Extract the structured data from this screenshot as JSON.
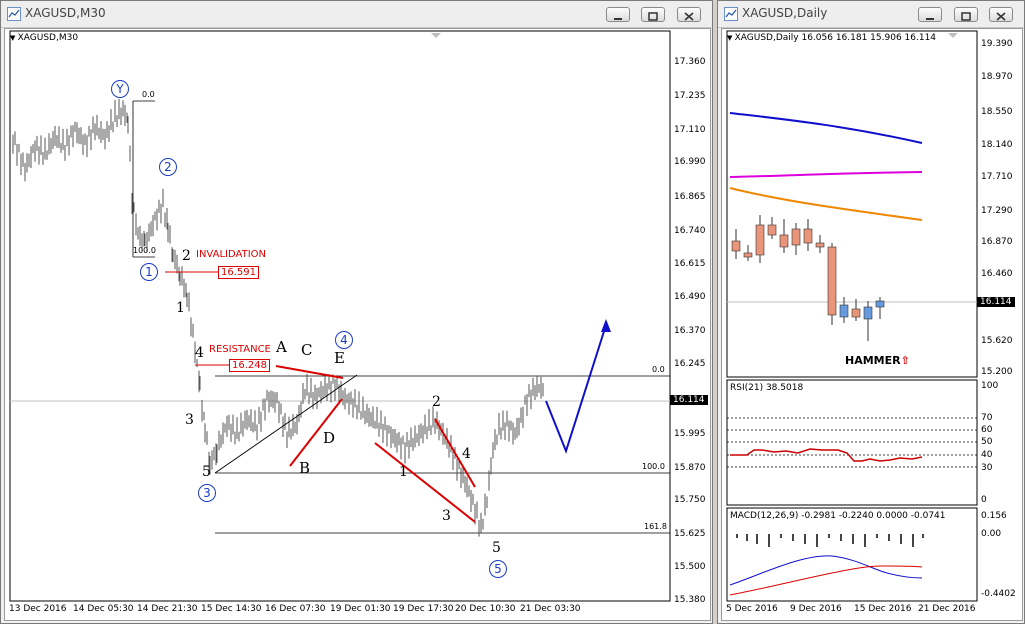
{
  "left_window": {
    "title": "XAGUSD,M30",
    "chart_label": "XAGUSD,M30",
    "price_axis": [
      "17.360",
      "17.235",
      "17.110",
      "16.990",
      "16.865",
      "16.740",
      "16.615",
      "16.490",
      "16.370",
      "16.245",
      "16.114",
      "15.995",
      "15.870",
      "15.750",
      "15.625",
      "15.500",
      "15.380"
    ],
    "current_price": "16.114",
    "time_axis": [
      "13 Dec 2016",
      "14 Dec 05:30",
      "14 Dec 21:30",
      "15 Dec 14:30",
      "16 Dec 07:30",
      "19 Dec 01:30",
      "19 Dec 17:30",
      "20 Dec 10:30",
      "21 Dec 03:30"
    ],
    "annotations": {
      "invalidation": "INVALIDATION",
      "invalidation_price": "16.591",
      "resistance": "RESISTANCE",
      "resistance_price": "16.248",
      "fib_00_top": "0.0",
      "fib_1000_top": "100.0",
      "fib_00": "0.0",
      "fib_1000": "100.0",
      "fib_1618": "161.8"
    },
    "wave_labels": {
      "Y": "Y",
      "c2": "2",
      "c1": "1",
      "c3": "3",
      "c4": "4",
      "c5": "5",
      "n2": "2",
      "n1": "1",
      "n4": "4",
      "n3": "3",
      "n5": "5",
      "A": "A",
      "B": "B",
      "C": "C",
      "D": "D",
      "E": "E",
      "m2": "2",
      "m1": "1",
      "m4": "4",
      "m3": "3",
      "m5": "5"
    }
  },
  "right_window": {
    "title": "XAGUSD,Daily",
    "chart_label": "XAGUSD,Daily  16.056 16.181 15.906 16.114",
    "price_axis": [
      "19.390",
      "18.970",
      "18.550",
      "18.140",
      "17.710",
      "17.290",
      "16.870",
      "16.460",
      "16.114",
      "15.620",
      "15.200"
    ],
    "current_price": "16.114",
    "hammer": "HAMMER",
    "rsi_label": "RSI(21) 38.5018",
    "rsi_axis": [
      "100",
      "70",
      "60",
      "50",
      "40",
      "30",
      "0"
    ],
    "macd_label": "MACD(12,26,9) -0.2981 -0.2240 0.0000 -0.0741",
    "macd_axis": [
      "0.156",
      "0.00",
      "-0.4402"
    ],
    "time_axis": [
      "5 Dec 2016",
      "9 Dec 2016",
      "15 Dec 2016",
      "21 Dec 2016"
    ]
  },
  "colors": {
    "bull_candle": "#6699dd",
    "bear_candle": "#e8957a",
    "ma_blue": "#1010cc",
    "ma_magenta": "#dd00dd",
    "ma_orange": "#ee8800",
    "annotation_red": "#dd0000",
    "wave_blue": "#1a3cc8"
  }
}
